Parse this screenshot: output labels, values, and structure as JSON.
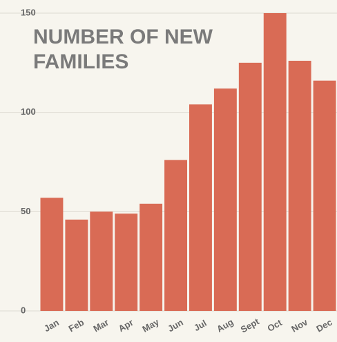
{
  "chart_data": {
    "type": "bar",
    "title": "NUMBER OF NEW FAMILIES",
    "categories": [
      "Jan",
      "Feb",
      "Mar",
      "Apr",
      "May",
      "Jun",
      "Jul",
      "Aug",
      "Sept",
      "Oct",
      "Nov",
      "Dec"
    ],
    "values": [
      57,
      46,
      50,
      49,
      54,
      76,
      104,
      112,
      125,
      150,
      126,
      116
    ],
    "color": "#d96b55",
    "ylim": [
      0,
      150
    ],
    "yticks": [
      0,
      50,
      100,
      150
    ],
    "grid": true
  }
}
